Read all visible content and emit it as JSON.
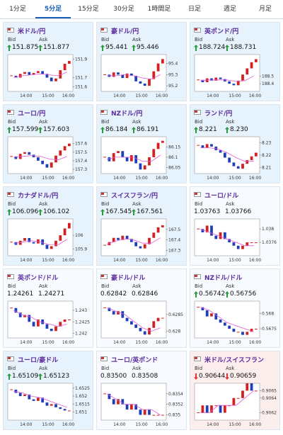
{
  "tabs": [
    "1分足",
    "5分足",
    "15分足",
    "30分足",
    "1時間足",
    "日足",
    "週足",
    "月足"
  ],
  "active_tab": 1,
  "labels": {
    "bid": "Bid",
    "ask": "Ask"
  },
  "cards": [
    {
      "name": "米ドル/円",
      "bid": "151.875",
      "ask": "151.877",
      "trend": "up",
      "background": "#e6f2fc",
      "chart": {
        "ylim": [
          151.55,
          151.95
        ],
        "yticks": [
          151.9,
          151.7,
          151.6
        ],
        "xticks": [
          "14:00",
          "15:00",
          "16:00"
        ],
        "close": [
          151.72,
          151.7,
          151.74,
          151.76,
          151.73,
          151.75,
          151.77,
          151.74,
          151.7,
          151.66,
          151.69,
          151.78,
          151.85,
          151.88
        ],
        "ma": [
          151.7,
          151.72,
          151.73,
          151.74,
          151.73,
          151.72,
          151.76
        ]
      }
    },
    {
      "name": "豪ドル/円",
      "bid": "95.441",
      "ask": "95.446",
      "trend": "up",
      "background": "#e6f2fc",
      "chart": {
        "ylim": [
          95.15,
          95.48
        ],
        "yticks": [
          95.4,
          95.3,
          95.2
        ],
        "xticks": [
          "14:00",
          "15:00",
          "16:00"
        ],
        "close": [
          95.3,
          95.28,
          95.32,
          95.3,
          95.27,
          95.31,
          95.29,
          95.24,
          95.22,
          95.2,
          95.26,
          95.33,
          95.4,
          95.44
        ],
        "ma": [
          95.29,
          95.29,
          95.3,
          95.29,
          95.27,
          95.26,
          95.3
        ]
      }
    },
    {
      "name": "英ポンド/円",
      "bid": "188.724",
      "ask": "188.731",
      "trend": "up",
      "background": "#e6f2fc",
      "chart": {
        "ylim": [
          188.3,
          188.78
        ],
        "yticks": [
          188.5,
          188.4
        ],
        "xticks": [
          "14:00",
          "15:00",
          "16:00"
        ],
        "close": [
          188.45,
          188.42,
          188.47,
          188.44,
          188.48,
          188.46,
          188.43,
          188.4,
          188.38,
          188.44,
          188.52,
          188.6,
          188.68,
          188.72
        ],
        "ma": [
          188.44,
          188.45,
          188.45,
          188.45,
          188.43,
          188.44,
          188.5
        ]
      }
    },
    {
      "name": "ユーロ/円",
      "bid": "157.599",
      "ask": "157.603",
      "trend": "up",
      "background": "#e6f2fc",
      "chart": {
        "ylim": [
          157.25,
          157.68
        ],
        "yticks": [
          157.6,
          157.5,
          157.4,
          157.3
        ],
        "xticks": [
          "14:00",
          "15:00",
          "16:00"
        ],
        "close": [
          157.45,
          157.42,
          157.48,
          157.5,
          157.47,
          157.44,
          157.4,
          157.36,
          157.32,
          157.38,
          157.46,
          157.52,
          157.57,
          157.6
        ],
        "ma": [
          157.44,
          157.45,
          157.46,
          157.45,
          157.42,
          157.41,
          157.45
        ]
      }
    },
    {
      "name": "NZドル/円",
      "bid": "86.184",
      "ask": "86.191",
      "trend": "up",
      "background": "#e6f2fc",
      "chart": {
        "ylim": [
          86.02,
          86.2
        ],
        "yticks": [
          86.15,
          86.1,
          86.05
        ],
        "xticks": [
          "14:00",
          "15:00",
          "16:00"
        ],
        "close": [
          86.1,
          86.08,
          86.12,
          86.13,
          86.1,
          86.08,
          86.11,
          86.07,
          86.04,
          86.06,
          86.1,
          86.14,
          86.17,
          86.18
        ],
        "ma": [
          86.09,
          86.1,
          86.1,
          86.1,
          86.08,
          86.08,
          86.11
        ]
      }
    },
    {
      "name": "ランド/円",
      "bid": "8.221",
      "ask": "8.230",
      "trend": "up",
      "background": "#e6f2fc",
      "chart": {
        "ylim": [
          8.205,
          8.235
        ],
        "yticks": [
          8.23,
          8.22,
          8.21
        ],
        "xticks": [
          "14:00",
          "15:00",
          "16:00"
        ],
        "close": [
          8.228,
          8.226,
          8.229,
          8.227,
          8.224,
          8.222,
          8.218,
          8.214,
          8.211,
          8.209,
          8.213,
          8.216,
          8.219,
          8.222
        ],
        "ma": [
          8.226,
          8.226,
          8.225,
          8.222,
          8.218,
          8.215,
          8.215
        ]
      }
    },
    {
      "name": "カナダドル/円",
      "bid": "106.096",
      "ask": "106.102",
      "trend": "up",
      "background": "#e6f2fc",
      "chart": {
        "ylim": [
          105.85,
          106.12
        ],
        "yticks": [
          106,
          105.9
        ],
        "xticks": [
          "14:00",
          "15:00",
          "16:00"
        ],
        "close": [
          105.95,
          105.93,
          105.96,
          105.98,
          105.95,
          105.94,
          105.97,
          105.93,
          105.9,
          105.92,
          105.96,
          106,
          106.05,
          106.09
        ],
        "ma": [
          105.94,
          105.95,
          105.96,
          105.95,
          105.93,
          105.93,
          105.97
        ]
      }
    },
    {
      "name": "スイスフラン/円",
      "bid": "167.545",
      "ask": "167.561",
      "trend": "up",
      "background": "#e6f2fc",
      "chart": {
        "ylim": [
          167.25,
          167.6
        ],
        "yticks": [
          167.5,
          167.4,
          167.3
        ],
        "xticks": [
          "14:00",
          "15:00",
          "16:00"
        ],
        "close": [
          167.35,
          167.38,
          167.42,
          167.4,
          167.44,
          167.41,
          167.38,
          167.34,
          167.32,
          167.36,
          167.42,
          167.47,
          167.52,
          167.54
        ],
        "ma": [
          167.36,
          167.39,
          167.41,
          167.4,
          167.37,
          167.37,
          167.42
        ]
      }
    },
    {
      "name": "ユーロ/ドル",
      "bid": "1.03763",
      "ask": "1.03766",
      "background": "#f7fbff",
      "chart": {
        "ylim": [
          1.0372,
          1.0383
        ],
        "yticks": [
          1.038,
          1.0376
        ],
        "xticks": [
          "14:00",
          "15:00",
          "16:00"
        ],
        "close": [
          1.038,
          1.0379,
          1.0381,
          1.0378,
          1.0377,
          1.0379,
          1.0377,
          1.0376,
          1.0375,
          1.0374,
          1.0375,
          1.0376,
          1.0376,
          1.0376
        ],
        "ma": [
          1.038,
          1.0379,
          1.0378,
          1.0377,
          1.0376,
          1.0375,
          1.0375
        ]
      }
    },
    {
      "name": "英ポンド/ドル",
      "bid": "1.24261",
      "ask": "1.24271",
      "background": "#f7fbff",
      "chart": {
        "ylim": [
          1.2418,
          1.2434
        ],
        "yticks": [
          1.243,
          1.2425,
          1.242
        ],
        "xticks": [
          "14:00",
          "15:00",
          "16:00"
        ],
        "close": [
          1.2431,
          1.2429,
          1.2427,
          1.2428,
          1.2425,
          1.2423,
          1.2426,
          1.2424,
          1.2422,
          1.2421,
          1.2423,
          1.2425,
          1.2426,
          1.2426
        ],
        "ma": [
          1.243,
          1.2428,
          1.2427,
          1.2425,
          1.2424,
          1.2423,
          1.2424
        ]
      }
    },
    {
      "name": "豪ドル/ドル",
      "bid": "0.62842",
      "ask": "0.62846",
      "background": "#f7fbff",
      "chart": {
        "ylim": [
          0.6278,
          0.6289
        ],
        "yticks": [
          0.6285,
          0.628
        ],
        "xticks": [
          "14:00",
          "15:00",
          "16:00"
        ],
        "close": [
          0.6287,
          0.6286,
          0.6285,
          0.6286,
          0.6284,
          0.6283,
          0.6282,
          0.6281,
          0.628,
          0.6279,
          0.6281,
          0.6283,
          0.6284,
          0.6284
        ],
        "ma": [
          0.6287,
          0.6286,
          0.6285,
          0.6283,
          0.6281,
          0.628,
          0.6281
        ]
      }
    },
    {
      "name": "NZドル/ドル",
      "bid": "0.56742",
      "ask": "0.56756",
      "trend": "up",
      "background": "#f7fbff",
      "chart": {
        "ylim": [
          0.5672,
          0.5684
        ],
        "yticks": [
          0.568,
          0.5675
        ],
        "xticks": [
          "14:00",
          "15:00",
          "16:00"
        ],
        "close": [
          0.5682,
          0.5681,
          0.5679,
          0.568,
          0.5678,
          0.5677,
          0.5676,
          0.5675,
          0.5674,
          0.5674,
          0.5673,
          0.5674,
          0.5675,
          0.5675
        ],
        "ma": [
          0.5682,
          0.5681,
          0.5679,
          0.5677,
          0.5676,
          0.5675,
          0.5674
        ]
      }
    },
    {
      "name": "ユーロ/豪ドル",
      "bid": "1.65109",
      "ask": "1.65123",
      "trend": "up",
      "background": "#e6f2fc",
      "chart": {
        "ylim": [
          1.6505,
          1.6528
        ],
        "yticks": [
          1.6525,
          1.652,
          1.6515,
          1.651
        ],
        "xticks": [
          "14:00",
          "15:00",
          "16:00"
        ],
        "close": [
          1.6524,
          1.6522,
          1.652,
          1.6521,
          1.6518,
          1.6517,
          1.6519,
          1.6516,
          1.6514,
          1.6515,
          1.6513,
          1.6512,
          1.6511,
          1.6511
        ],
        "ma": [
          1.6523,
          1.6522,
          1.652,
          1.6519,
          1.6517,
          1.6515,
          1.6513
        ]
      }
    },
    {
      "name": "ユーロ/英ポンド",
      "bid": "0.83500",
      "ask": "0.83508",
      "background": "#f7fbff",
      "chart": {
        "ylim": [
          0.8349,
          0.8356
        ],
        "yticks": [
          0.8354,
          0.8352,
          0.835
        ],
        "xticks": [
          "14:00",
          "15:00",
          "16:00"
        ],
        "close": [
          0.8354,
          0.8353,
          0.8352,
          0.8353,
          0.8352,
          0.8351,
          0.8352,
          0.8351,
          0.835,
          0.8351,
          0.835,
          0.835,
          0.835,
          0.835
        ],
        "ma": [
          0.8354,
          0.8353,
          0.8352,
          0.8352,
          0.8351,
          0.8351,
          0.835
        ]
      }
    },
    {
      "name": "米ドル/スイスフラン",
      "bid": "0.90644",
      "ask": "0.90659",
      "trend": "down",
      "background": "#fdeeee",
      "chart": {
        "ylim": [
          0.9061,
          0.9066
        ],
        "yticks": [
          0.9065,
          0.9064,
          0.9062
        ],
        "xticks": [
          "14:00",
          "15:00",
          "16:00"
        ],
        "close": [
          0.9062,
          0.9063,
          0.9062,
          0.9063,
          0.9063,
          0.9062,
          0.9063,
          0.9063,
          0.9064,
          0.9064,
          0.9065,
          0.9066,
          0.9065,
          0.9065
        ],
        "ma": [
          0.9062,
          0.9062,
          0.9063,
          0.9063,
          0.9063,
          0.9064,
          0.9065
        ]
      }
    }
  ]
}
